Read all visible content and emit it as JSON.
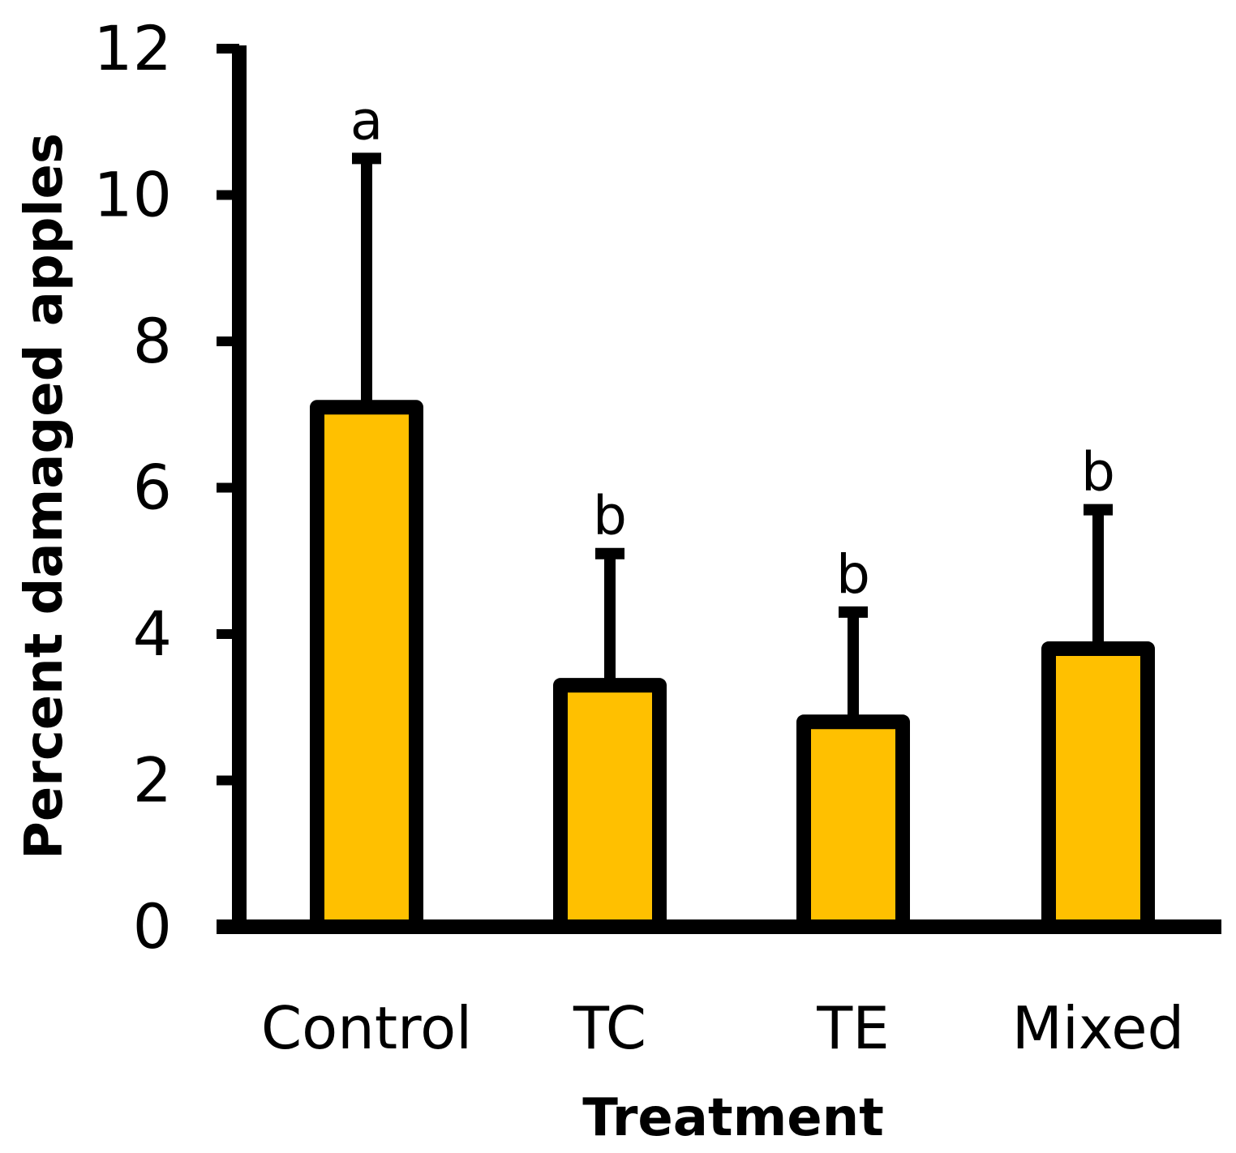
{
  "chart_data": {
    "type": "bar",
    "title": "",
    "xlabel": "Treatment",
    "ylabel": "Percent damaged apples",
    "categories": [
      "Control",
      "TC",
      "TE",
      "Mixed"
    ],
    "values": [
      7.1,
      3.3,
      2.8,
      3.8
    ],
    "error_upper": [
      10.5,
      5.1,
      4.3,
      5.7
    ],
    "significance_letters": [
      "a",
      "b",
      "b",
      "b"
    ],
    "ylim": [
      0,
      12
    ],
    "yticks": [
      0,
      2,
      4,
      6,
      8,
      10,
      12
    ],
    "ytick_labels": [
      "0",
      "2",
      "4",
      "6",
      "8",
      "10",
      "12"
    ],
    "bar_color": "#FFC000",
    "edge_color": "#000000",
    "grid": false
  }
}
